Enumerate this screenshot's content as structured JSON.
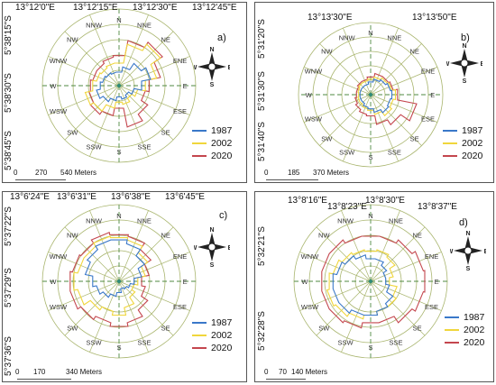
{
  "legend_labels": [
    "1987",
    "2002",
    "2020"
  ],
  "colors": {
    "1987": "#3a78c9",
    "2002": "#f0d63c",
    "2020": "#c4464e",
    "grid": "#a9b56e",
    "axis": "#4f8a42"
  },
  "directions": [
    "N",
    "NNE",
    "NE",
    "ENE",
    "E",
    "ESE",
    "SE",
    "SSE",
    "S",
    "SSW",
    "SW",
    "WSW",
    "W",
    "WNW",
    "NW",
    "NNW"
  ],
  "compass_letters": {
    "n": "N",
    "e": "E",
    "s": "S",
    "w": "W"
  },
  "panels": [
    {
      "label": "a)",
      "lon_labels": [
        "13°12'0\"E",
        "13°12'15\"E",
        "13°12'30\"E",
        "13°12'45\"E"
      ],
      "lat_labels": [
        "5°38'15\"S",
        "5°38'30\"S",
        "5°38'45\"S"
      ],
      "scale_labels": [
        "0",
        "270",
        "540 Meters"
      ],
      "series": {
        "1987": [
          0.18,
          0.25,
          0.35,
          0.42,
          0.3,
          0.2,
          0.15,
          0.18,
          0.15,
          0.2,
          0.25,
          0.3,
          0.25,
          0.22,
          0.2,
          0.18
        ],
        "2002": [
          0.3,
          0.55,
          0.65,
          0.5,
          0.35,
          0.25,
          0.2,
          0.25,
          0.22,
          0.3,
          0.4,
          0.45,
          0.35,
          0.3,
          0.28,
          0.3
        ],
        "2020": [
          0.4,
          0.6,
          0.68,
          0.55,
          0.4,
          0.35,
          0.45,
          0.55,
          0.3,
          0.4,
          0.45,
          0.4,
          0.38,
          0.35,
          0.35,
          0.38
        ]
      }
    },
    {
      "label": "b)",
      "lon_labels": [
        "13°13'30\"E",
        "13°13'50\"E"
      ],
      "lat_labels": [
        "5°31'20\"S",
        "5°31'30\"S",
        "5°31'40\"S"
      ],
      "scale_labels": [
        "0",
        "185",
        "370 Meters"
      ],
      "series": {
        "1987": [
          0.18,
          0.22,
          0.25,
          0.28,
          0.3,
          0.28,
          0.3,
          0.25,
          0.2,
          0.18,
          0.15,
          0.15,
          0.15,
          0.15,
          0.15,
          0.15
        ],
        "2002": [
          0.22,
          0.25,
          0.28,
          0.3,
          0.35,
          0.32,
          0.35,
          0.28,
          0.22,
          0.2,
          0.18,
          0.18,
          0.17,
          0.18,
          0.2,
          0.2
        ],
        "2020": [
          0.25,
          0.3,
          0.3,
          0.32,
          0.38,
          0.65,
          0.5,
          0.42,
          0.3,
          0.28,
          0.25,
          0.22,
          0.2,
          0.2,
          0.22,
          0.22
        ]
      }
    },
    {
      "label": "c)",
      "lon_labels": [
        "13°6'24\"E",
        "13°6'31\"E",
        "13°6'38\"E",
        "13°6'45\"E"
      ],
      "lat_labels": [
        "5°37'22\"S",
        "5°37'29\"S",
        "5°37'36\"S"
      ],
      "scale_labels": [
        "0",
        "170",
        "340 Meters"
      ],
      "series": {
        "1987": [
          0.55,
          0.5,
          0.4,
          0.3,
          0.2,
          0.15,
          0.12,
          0.1,
          0.15,
          0.2,
          0.25,
          0.3,
          0.35,
          0.45,
          0.5,
          0.55
        ],
        "2002": [
          0.58,
          0.55,
          0.45,
          0.35,
          0.25,
          0.2,
          0.25,
          0.35,
          0.45,
          0.4,
          0.45,
          0.55,
          0.6,
          0.55,
          0.55,
          0.6
        ],
        "2020": [
          0.62,
          0.6,
          0.5,
          0.4,
          0.3,
          0.35,
          0.45,
          0.55,
          0.6,
          0.55,
          0.6,
          0.65,
          0.65,
          0.62,
          0.6,
          0.65
        ]
      }
    },
    {
      "label": "d)",
      "lon_labels": [
        "13°8'16\"E",
        "13°8'23\"E",
        "13°8'30\"E",
        "13°8'37\"E"
      ],
      "lat_labels": [
        "5°32'21\"S",
        "5°32'28\"S"
      ],
      "scale_labels": [
        "0",
        "70",
        "140 Meters"
      ],
      "series": {
        "1987": [
          0.3,
          0.3,
          0.25,
          0.2,
          0.2,
          0.25,
          0.35,
          0.4,
          0.45,
          0.45,
          0.5,
          0.5,
          0.5,
          0.45,
          0.4,
          0.35
        ],
        "2002": [
          0.4,
          0.42,
          0.38,
          0.3,
          0.25,
          0.35,
          0.4,
          0.4,
          0.45,
          0.5,
          0.55,
          0.58,
          0.55,
          0.5,
          0.45,
          0.42
        ],
        "2020": [
          0.6,
          0.6,
          0.65,
          0.7,
          0.72,
          0.7,
          0.65,
          0.55,
          0.55,
          0.62,
          0.65,
          0.65,
          0.65,
          0.65,
          0.65,
          0.6
        ]
      }
    }
  ]
}
